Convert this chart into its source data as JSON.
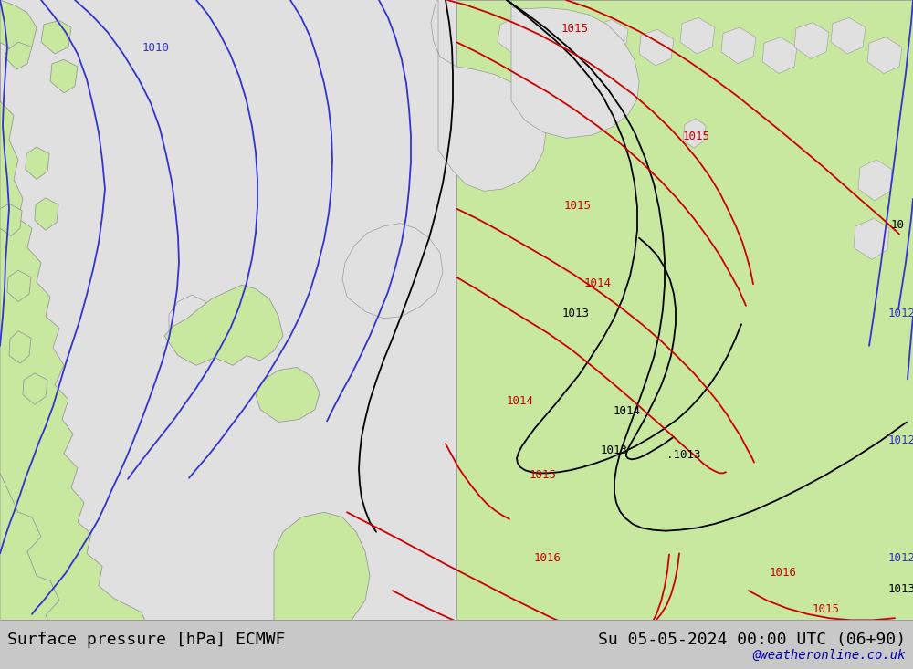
{
  "title_left": "Surface pressure [hPa] ECMWF",
  "title_right": "Su 05-05-2024 00:00 UTC (06+90)",
  "watermark": "@weatheronline.co.uk",
  "bg_color": "#e0e0e0",
  "land_color": "#c8e8a0",
  "border_color": "#999999",
  "blue": "#3333cc",
  "black": "#000000",
  "red": "#cc0000",
  "title_fontsize": 13,
  "watermark_fontsize": 10,
  "figsize": [
    10.0,
    7.33
  ],
  "dpi": 100
}
